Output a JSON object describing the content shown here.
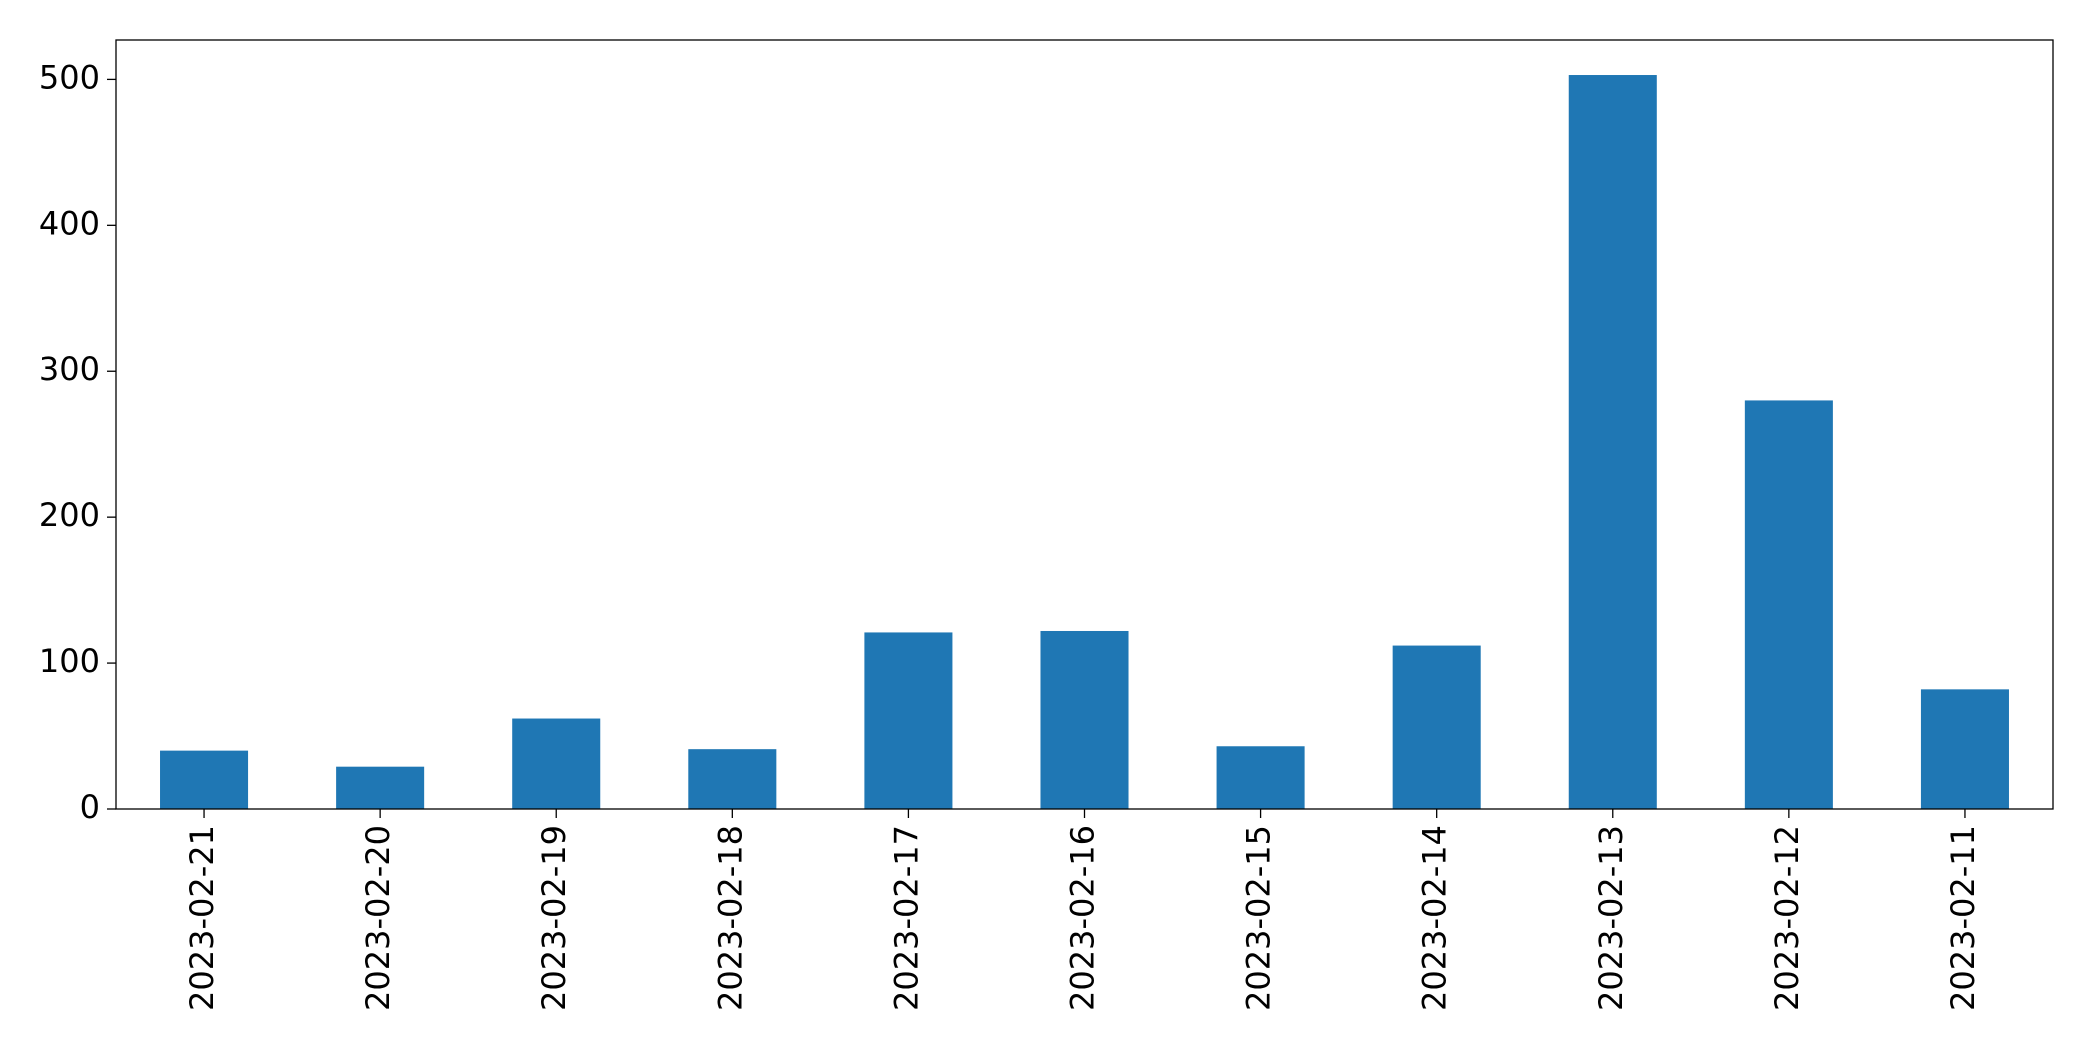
{
  "chart_data": {
    "type": "bar",
    "categories": [
      "2023-02-21",
      "2023-02-20",
      "2023-02-19",
      "2023-02-18",
      "2023-02-17",
      "2023-02-16",
      "2023-02-15",
      "2023-02-14",
      "2023-02-13",
      "2023-02-12",
      "2023-02-11"
    ],
    "values": [
      40,
      29,
      62,
      41,
      121,
      122,
      43,
      112,
      503,
      280,
      82
    ],
    "color": "#1f77b4",
    "ylim": [
      0,
      527
    ],
    "yticks": [
      0,
      100,
      200,
      300,
      400,
      500
    ],
    "grid": false
  }
}
